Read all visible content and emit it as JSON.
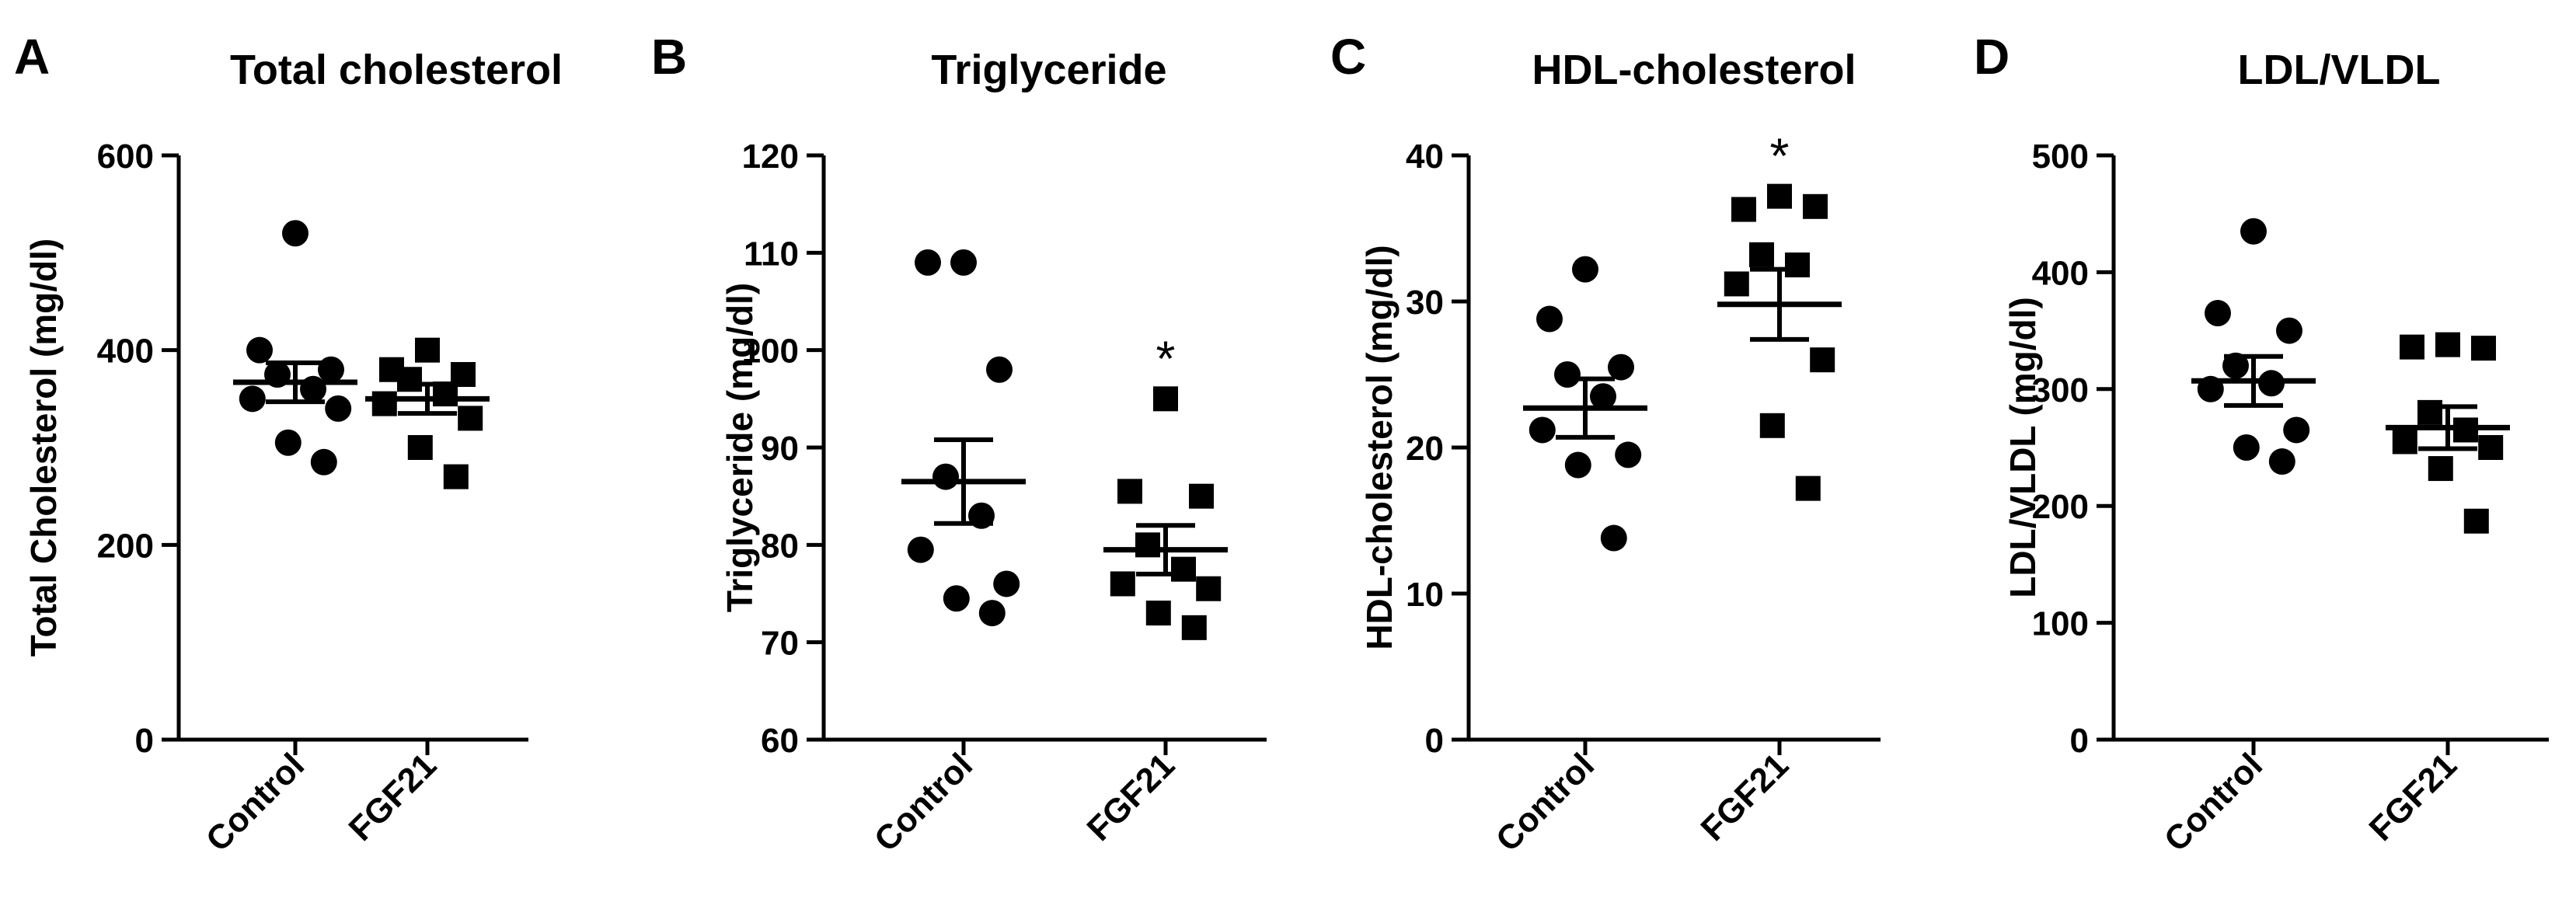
{
  "chart_data": [
    {
      "panel": "A",
      "type": "scatter",
      "title": "Total cholesterol",
      "ylabel": "Total Cholesterol (mg/dl)",
      "ylim": [
        0,
        600
      ],
      "yticks": [
        0,
        200,
        400,
        600
      ],
      "categories": [
        "Control",
        "FGF21"
      ],
      "markers": [
        "circle",
        "square"
      ],
      "series": [
        {
          "name": "Control",
          "mean": 367,
          "sem": 20,
          "values": [
            520,
            400,
            380,
            375,
            360,
            350,
            340,
            305,
            285
          ]
        },
        {
          "name": "FGF21",
          "mean": 350,
          "sem": 15,
          "values": [
            400,
            380,
            375,
            370,
            355,
            345,
            330,
            300,
            270
          ]
        }
      ],
      "significance": [
        "",
        ""
      ]
    },
    {
      "panel": "B",
      "type": "scatter",
      "title": "Triglyceride",
      "ylabel": "Triglyceride (mg/dl)",
      "ylim": [
        60,
        120
      ],
      "yticks": [
        60,
        70,
        80,
        90,
        100,
        110,
        120
      ],
      "categories": [
        "Control",
        "FGF21"
      ],
      "markers": [
        "circle",
        "square"
      ],
      "series": [
        {
          "name": "Control",
          "mean": 86.5,
          "sem": 4.3,
          "values": [
            109,
            109,
            98,
            87,
            83,
            79.5,
            76,
            74.5,
            73
          ]
        },
        {
          "name": "FGF21",
          "mean": 79.5,
          "sem": 2.5,
          "values": [
            95,
            85.5,
            85,
            80,
            77.5,
            76,
            75.5,
            73,
            71.5
          ]
        }
      ],
      "significance": [
        "",
        "*"
      ]
    },
    {
      "panel": "C",
      "type": "scatter",
      "title": "HDL-cholesterol",
      "ylabel": "HDL-cholesterol (mg/dl)",
      "ylim": [
        0,
        40
      ],
      "yticks": [
        0,
        10,
        20,
        30,
        40
      ],
      "categories": [
        "Control",
        "FGF21"
      ],
      "markers": [
        "circle",
        "square"
      ],
      "series": [
        {
          "name": "Control",
          "mean": 22.7,
          "sem": 2.0,
          "values": [
            32.2,
            28.8,
            25.5,
            25,
            23.5,
            21.2,
            19.5,
            18.8,
            13.8
          ]
        },
        {
          "name": "FGF21",
          "mean": 29.8,
          "sem": 2.4,
          "values": [
            37.2,
            36.3,
            36.5,
            33.2,
            32.5,
            31.2,
            26,
            21.5,
            17.2
          ]
        }
      ],
      "significance": [
        "",
        "*"
      ]
    },
    {
      "panel": "D",
      "type": "scatter",
      "title": "LDL/VLDL",
      "ylabel": "LDL/VLDL (mg/dl)",
      "ylim": [
        0,
        500
      ],
      "yticks": [
        0,
        100,
        200,
        300,
        400,
        500
      ],
      "categories": [
        "Control",
        "FGF21"
      ],
      "markers": [
        "circle",
        "square"
      ],
      "series": [
        {
          "name": "Control",
          "mean": 307,
          "sem": 21,
          "values": [
            435,
            365,
            350,
            320,
            305,
            300,
            265,
            250,
            238
          ]
        },
        {
          "name": "FGF21",
          "mean": 267,
          "sem": 18,
          "values": [
            338,
            336,
            335,
            280,
            265,
            255,
            250,
            232,
            187
          ]
        }
      ],
      "significance": [
        "",
        ""
      ]
    }
  ]
}
